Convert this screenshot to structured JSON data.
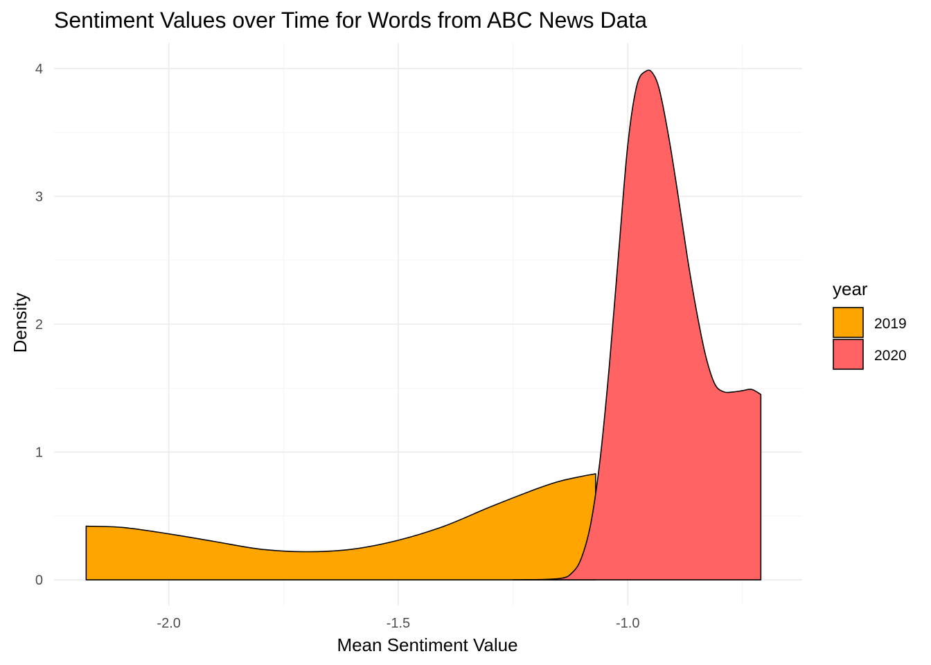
{
  "chart_data": {
    "type": "area",
    "subtype": "density",
    "title": "Sentiment Values over Time for Words from ABC News Data",
    "xlabel": "Mean Sentiment Value",
    "ylabel": "Density",
    "xlim": [
      -2.25,
      -0.62
    ],
    "ylim": [
      -0.2,
      4.2
    ],
    "x_ticks": [
      -2.0,
      -1.5,
      -1.0
    ],
    "x_tick_labels": [
      "-2.0",
      "-1.5",
      "-1.0"
    ],
    "y_ticks": [
      0,
      1,
      2,
      3,
      4
    ],
    "y_tick_labels": [
      "0",
      "1",
      "2",
      "3",
      "4"
    ],
    "grid": true,
    "legend": {
      "title": "year",
      "position": "right"
    },
    "series": [
      {
        "name": "2019",
        "color": "#FFA500",
        "x": [
          -2.18,
          -2.1,
          -2.0,
          -1.9,
          -1.8,
          -1.7,
          -1.6,
          -1.5,
          -1.4,
          -1.3,
          -1.2,
          -1.15,
          -1.1,
          -1.07
        ],
        "y": [
          0.42,
          0.41,
          0.36,
          0.3,
          0.24,
          0.22,
          0.24,
          0.31,
          0.42,
          0.57,
          0.71,
          0.77,
          0.81,
          0.83
        ]
      },
      {
        "name": "2020",
        "color": "#FF6363",
        "x": [
          -1.25,
          -1.15,
          -1.12,
          -1.1,
          -1.08,
          -1.06,
          -1.04,
          -1.02,
          -1.0,
          -0.98,
          -0.96,
          -0.945,
          -0.93,
          -0.91,
          -0.89,
          -0.87,
          -0.85,
          -0.83,
          -0.81,
          -0.79,
          -0.77,
          -0.75,
          -0.73,
          -0.71
        ],
        "y": [
          0.0,
          0.01,
          0.06,
          0.18,
          0.45,
          0.95,
          1.68,
          2.55,
          3.4,
          3.87,
          3.98,
          3.96,
          3.82,
          3.45,
          3.0,
          2.52,
          2.1,
          1.75,
          1.53,
          1.47,
          1.47,
          1.48,
          1.49,
          1.45
        ]
      }
    ]
  },
  "colors": {
    "background": "#FFFFFF",
    "grid": "#EBEBEB",
    "outline": "#000000"
  }
}
